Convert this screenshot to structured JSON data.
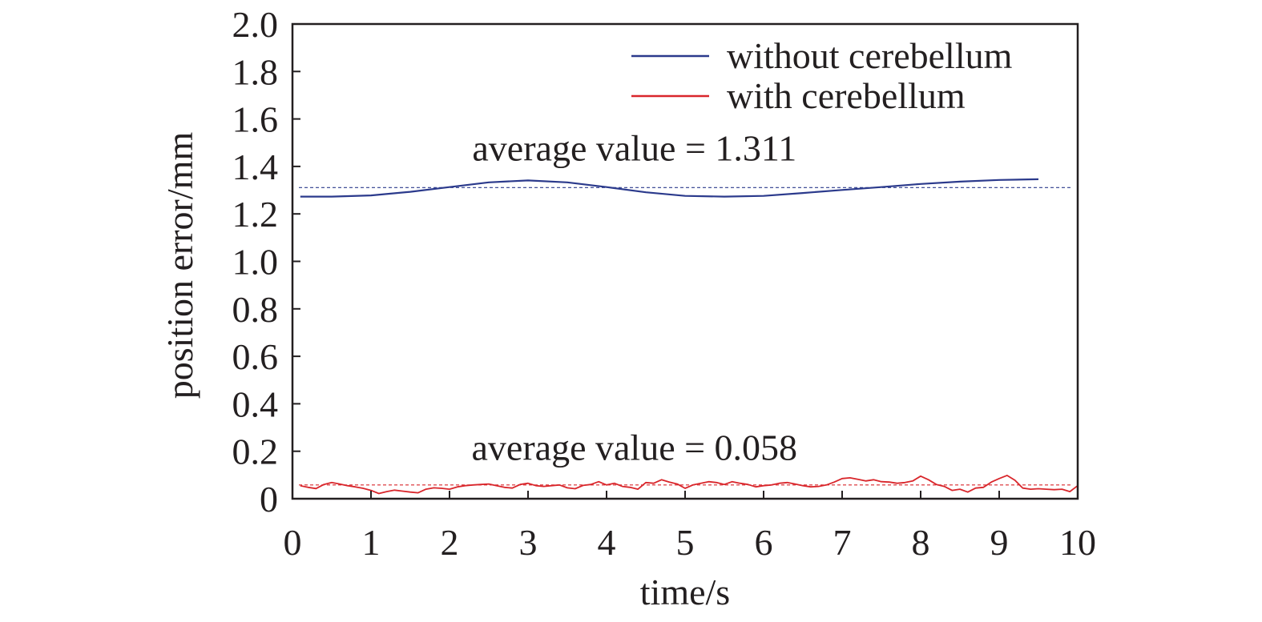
{
  "chart_data": {
    "type": "line",
    "xlabel": "time/s",
    "ylabel": "position error/mm",
    "xlim": [
      0,
      10
    ],
    "ylim": [
      0,
      2.0
    ],
    "xticks": [
      0,
      1,
      2,
      3,
      4,
      5,
      6,
      7,
      8,
      9,
      10
    ],
    "xtick_labels": [
      "0",
      "1",
      "2",
      "3",
      "4",
      "5",
      "6",
      "7",
      "8",
      "9",
      "10"
    ],
    "yticks": [
      0,
      0.2,
      0.4,
      0.6,
      0.8,
      1.0,
      1.2,
      1.4,
      1.6,
      1.8,
      2.0
    ],
    "ytick_labels": [
      "0",
      "0.2",
      "0.4",
      "0.6",
      "0.8",
      "1.0",
      "1.2",
      "1.4",
      "1.6",
      "1.8",
      "2.0"
    ],
    "grid": false,
    "legend_position": "top-right",
    "series": [
      {
        "name": "without cerebellum",
        "color": "#2b3a8c",
        "x": [
          0.1,
          0.5,
          1.0,
          1.5,
          2.0,
          2.5,
          3.0,
          3.5,
          4.0,
          4.5,
          5.0,
          5.5,
          6.0,
          6.5,
          7.0,
          7.5,
          8.0,
          8.5,
          9.0,
          9.5
        ],
        "y": [
          1.273,
          1.273,
          1.278,
          1.293,
          1.313,
          1.333,
          1.341,
          1.333,
          1.313,
          1.291,
          1.276,
          1.273,
          1.276,
          1.288,
          1.301,
          1.313,
          1.326,
          1.336,
          1.343,
          1.346
        ]
      },
      {
        "name": "with cerebellum",
        "color": "#d9262b",
        "x": [
          0.1,
          0.2,
          0.3,
          0.4,
          0.5,
          0.6,
          0.7,
          0.8,
          0.9,
          1.0,
          1.1,
          1.2,
          1.3,
          1.4,
          1.5,
          1.6,
          1.7,
          1.8,
          1.9,
          2.0,
          2.1,
          2.2,
          2.3,
          2.4,
          2.5,
          2.6,
          2.7,
          2.8,
          2.9,
          3.0,
          3.1,
          3.2,
          3.3,
          3.4,
          3.5,
          3.6,
          3.7,
          3.8,
          3.9,
          4.0,
          4.1,
          4.2,
          4.3,
          4.4,
          4.5,
          4.6,
          4.7,
          4.8,
          4.9,
          5.0,
          5.1,
          5.2,
          5.3,
          5.4,
          5.5,
          5.6,
          5.7,
          5.8,
          5.9,
          6.0,
          6.1,
          6.2,
          6.3,
          6.4,
          6.5,
          6.6,
          6.7,
          6.8,
          6.9,
          7.0,
          7.1,
          7.2,
          7.3,
          7.4,
          7.5,
          7.6,
          7.7,
          7.8,
          7.9,
          8.0,
          8.1,
          8.2,
          8.3,
          8.4,
          8.5,
          8.6,
          8.7,
          8.8,
          8.9,
          9.0,
          9.1,
          9.2,
          9.3,
          9.4,
          9.5,
          9.6,
          9.7,
          9.8,
          9.9,
          10.0
        ],
        "y": [
          0.055,
          0.048,
          0.043,
          0.06,
          0.068,
          0.062,
          0.055,
          0.05,
          0.044,
          0.035,
          0.022,
          0.03,
          0.036,
          0.032,
          0.028,
          0.025,
          0.04,
          0.046,
          0.044,
          0.04,
          0.05,
          0.055,
          0.058,
          0.06,
          0.062,
          0.055,
          0.048,
          0.045,
          0.06,
          0.065,
          0.055,
          0.052,
          0.055,
          0.058,
          0.046,
          0.042,
          0.056,
          0.06,
          0.072,
          0.058,
          0.065,
          0.052,
          0.048,
          0.04,
          0.068,
          0.065,
          0.08,
          0.07,
          0.062,
          0.044,
          0.058,
          0.065,
          0.072,
          0.068,
          0.06,
          0.072,
          0.065,
          0.06,
          0.05,
          0.055,
          0.058,
          0.065,
          0.068,
          0.062,
          0.055,
          0.05,
          0.052,
          0.058,
          0.07,
          0.085,
          0.088,
          0.082,
          0.075,
          0.08,
          0.072,
          0.07,
          0.065,
          0.068,
          0.075,
          0.095,
          0.08,
          0.06,
          0.052,
          0.035,
          0.04,
          0.028,
          0.045,
          0.048,
          0.07,
          0.085,
          0.098,
          0.078,
          0.045,
          0.04,
          0.042,
          0.04,
          0.038,
          0.04,
          0.03,
          0.055
        ]
      }
    ],
    "reference_lines": [
      {
        "y": 1.311,
        "color": "#2b3a8c",
        "style": "dashed"
      },
      {
        "y": 0.058,
        "color": "#d9262b",
        "style": "dashed"
      }
    ],
    "annotations": [
      {
        "text": "average value = 1.311",
        "x": 4.1,
        "y": 1.475
      },
      {
        "text": "average value = 0.058",
        "x": 4.1,
        "y": 0.215
      }
    ]
  }
}
